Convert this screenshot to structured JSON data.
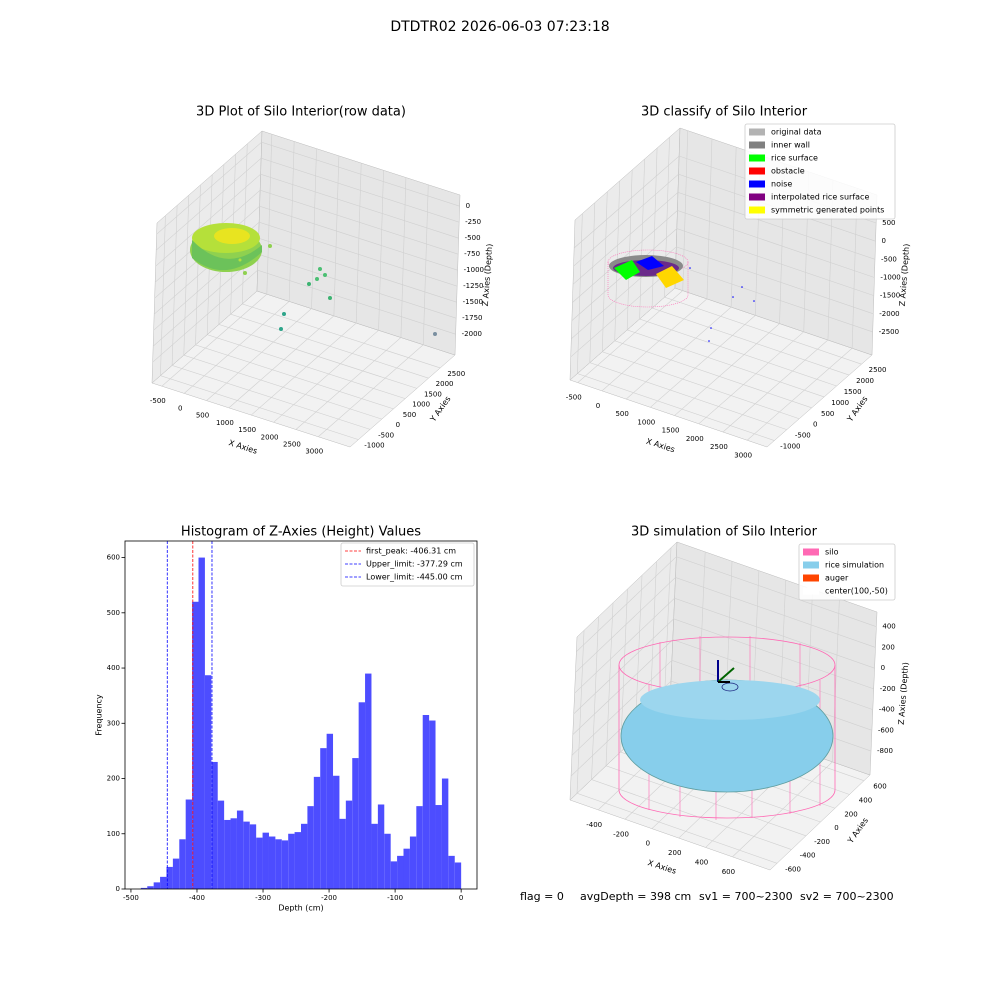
{
  "title": "DTDTR02 2026-06-03 07:23:18",
  "chart_data": [
    {
      "type": "scatter3d",
      "title": "3D Plot of Silo Interior(row data)",
      "xlabel": "X Axies",
      "ylabel": "Y Axies",
      "zlabel": "Z Axies (Depth)",
      "xlim": [
        -720,
        3710
      ],
      "ylim": [
        -1360,
        3130
      ],
      "zlim": [
        -2325,
        175
      ],
      "xticks": [
        -500,
        0,
        500,
        1000,
        1500,
        2000,
        2500,
        3000
      ],
      "yticks": [
        -1000,
        -500,
        0,
        500,
        1000,
        1500,
        2000,
        2500
      ],
      "zticks": [
        -2000,
        -1750,
        -1500,
        -1250,
        -1000,
        -750,
        -500,
        -250,
        0
      ]
    },
    {
      "type": "scatter3d",
      "title": "3D classify of Silo Interior",
      "xlabel": "X Axies",
      "ylabel": "Y Axies",
      "zlabel": "Z Axies (Depth)",
      "xlim": [
        -660,
        3410
      ],
      "ylim": [
        -1295,
        2920
      ],
      "zlim": [
        -3135,
        1272
      ],
      "xticks": [
        -500,
        0,
        500,
        1000,
        1500,
        2000,
        2500,
        3000
      ],
      "yticks": [
        -1000,
        -500,
        0,
        500,
        1000,
        1500,
        2000,
        2500
      ],
      "zticks": [
        -2500,
        -2000,
        -1500,
        -1000,
        -500,
        0,
        500
      ],
      "legend": "upper right",
      "series": [
        {
          "name": "original data",
          "color": "#b3b3b3"
        },
        {
          "name": "inner wall",
          "color": "#808080"
        },
        {
          "name": "rice surface",
          "color": "#00ff00"
        },
        {
          "name": "obstacle",
          "color": "#ff0000"
        },
        {
          "name": "noise",
          "color": "#0000ff"
        },
        {
          "name": "interpolated rice surface",
          "color": "#800080"
        },
        {
          "name": "symmetric generated points",
          "color": "#ffff00"
        }
      ]
    },
    {
      "type": "histogram",
      "title": "Histogram of Z-Axies (Height) Values",
      "xlabel": "Depth (cm)",
      "ylabel": "Frequency",
      "color": "#4d4dff",
      "xlim": [
        -509,
        24
      ],
      "ylim": [
        0,
        630
      ],
      "xticks": [
        -500,
        -400,
        -300,
        -200,
        -100,
        0
      ],
      "yticks": [
        0,
        100,
        200,
        300,
        400,
        500,
        600
      ],
      "bins": [
        -485.0,
        -475.3,
        -465.6,
        -455.9,
        -446.2,
        -436.5,
        -426.8,
        -417.1,
        -407.4,
        -397.7,
        -388.0,
        -378.3,
        -368.6,
        -358.9,
        -349.2,
        -339.5,
        -329.8,
        -320.1,
        -310.4,
        -300.7,
        -291.0,
        -281.3,
        -271.6,
        -261.9,
        -252.2,
        -242.5,
        -232.8,
        -223.1,
        -213.4,
        -203.7,
        -194.0,
        -184.3,
        -174.6,
        -164.9,
        -155.2,
        -145.5,
        -135.8,
        -126.1,
        -116.4,
        -106.7,
        -97.0,
        -87.3,
        -77.6,
        -67.9,
        -58.2,
        -48.5,
        -38.8,
        -29.1,
        -19.4,
        -9.7,
        0.0
      ],
      "values": [
        2,
        5,
        12,
        22,
        40,
        55,
        90,
        162,
        520,
        600,
        387,
        230,
        160,
        125,
        128,
        142,
        122,
        117,
        93,
        102,
        95,
        90,
        88,
        100,
        103,
        118,
        150,
        203,
        255,
        281,
        205,
        127,
        160,
        237,
        338,
        390,
        118,
        153,
        100,
        50,
        60,
        73,
        95,
        150,
        315,
        305,
        152,
        200,
        60,
        48
      ],
      "legend": "upper right",
      "vlines": [
        {
          "name": "first_peak: -406.31 cm",
          "value": -406.31,
          "color": "#ff0000"
        },
        {
          "name": "Upper_limit: -377.29 cm",
          "value": -377.29,
          "color": "#0000ff"
        },
        {
          "name": "Lower_limit: -445.00 cm",
          "value": -445.0,
          "color": "#0000ff"
        }
      ]
    },
    {
      "type": "surface3d",
      "title": "3D simulation of Silo Interior",
      "xlabel": "X Axies",
      "ylabel": "Y Axies",
      "zlabel": "Z Axies (Depth)",
      "xlim": [
        -610,
        880
      ],
      "ylim": [
        -697,
        683
      ],
      "zlim": [
        -1031,
        542
      ],
      "xticks": [
        -400,
        -200,
        0,
        200,
        400,
        600
      ],
      "yticks": [
        -600,
        -400,
        -200,
        0,
        200,
        400,
        600
      ],
      "zticks": [
        -800,
        -600,
        -400,
        -200,
        0,
        200,
        400
      ],
      "legend": "upper right",
      "series": [
        {
          "name": "silo",
          "color": "#ff69b4"
        },
        {
          "name": "rice simulation",
          "color": "#87ceeb"
        },
        {
          "name": "auger",
          "color": "#ff4500"
        },
        {
          "name": "center(100,-50)",
          "color": "#ffffff"
        }
      ]
    }
  ],
  "footer": [
    "flag = 0",
    "avgDepth = 398 cm",
    "sv1 = 700~2300",
    "sv2 = 700~2300"
  ]
}
